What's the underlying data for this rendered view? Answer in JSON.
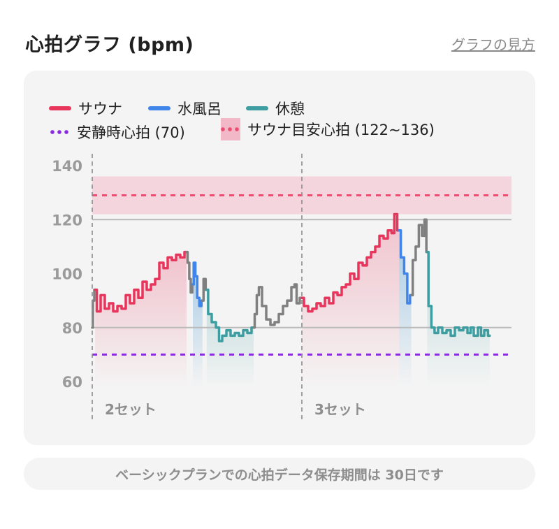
{
  "header": {
    "title": "心拍グラフ (bpm)",
    "help_link": "グラフの見方"
  },
  "notice": "ベーシックプランでの心拍データ保存期間は 30日です",
  "colors": {
    "sauna": "#e8355c",
    "water_bath": "#3f85ea",
    "rest": "#3e9da0",
    "other": "#808080",
    "resting_hr": "#8a2be2",
    "target_line": "#ea4f72",
    "target_band": "#f4c8d4",
    "grid": "#b9b9b9"
  },
  "icons": {
    "legend_line": "line-swatch-icon",
    "legend_dots": "dotted-line-icon",
    "legend_band": "band-swatch-icon"
  },
  "chart_data": {
    "type": "line",
    "title": "心拍グラフ (bpm)",
    "xlabel": "",
    "ylabel": "",
    "ylim": [
      60,
      140
    ],
    "y_ticks": [
      140,
      120,
      100,
      80,
      60
    ],
    "grid_lines": [
      120,
      80
    ],
    "legend": [
      {
        "key": "sauna",
        "label": "サウナ",
        "style": "line"
      },
      {
        "key": "water_bath",
        "label": "水風呂",
        "style": "line"
      },
      {
        "key": "rest",
        "label": "休憩",
        "style": "line"
      },
      {
        "key": "resting_hr",
        "label": "安静時心拍 (70)",
        "style": "dots"
      },
      {
        "key": "target",
        "label": "サウナ目安心拍 (122~136)",
        "style": "band"
      }
    ],
    "resting_hr": 70,
    "target_band": [
      122,
      136
    ],
    "target_line": 129,
    "x_domain": [
      0,
      100
    ],
    "set_markers": [
      {
        "x": 0,
        "label": "2セット"
      },
      {
        "x": 50,
        "label": "3セット"
      }
    ],
    "series": [
      {
        "key": "other",
        "x": [
          0,
          0.3,
          0.7
        ],
        "y": [
          80,
          90,
          94
        ]
      },
      {
        "key": "sauna",
        "x": [
          0.7,
          1.5,
          2.5,
          3.5,
          4.5,
          5.5,
          6.5,
          7.5,
          8.5,
          9.5,
          10.5,
          11.5,
          12.5,
          13.5,
          14.5,
          15.5,
          16.5,
          17.5,
          18.5,
          19.5,
          20.5,
          21.5,
          22.5
        ],
        "y": [
          94,
          86,
          92,
          87,
          89,
          86,
          88,
          87,
          92,
          89,
          94,
          91,
          97,
          94,
          96,
          98,
          104,
          102,
          106,
          105,
          107,
          106,
          108
        ]
      },
      {
        "key": "other",
        "x": [
          22.5,
          23,
          23.3,
          23.7,
          24
        ],
        "y": [
          108,
          104,
          98,
          93,
          96
        ]
      },
      {
        "key": "water_bath",
        "x": [
          24,
          24.4,
          24.8,
          25.3,
          25.8,
          26.3
        ],
        "y": [
          96,
          104,
          99,
          91,
          88,
          90
        ]
      },
      {
        "key": "other",
        "x": [
          26.3,
          26.8,
          27.3
        ],
        "y": [
          90,
          98,
          94
        ]
      },
      {
        "key": "rest",
        "x": [
          27.3,
          28,
          29,
          30,
          30.5,
          31.5,
          32.5,
          33.5,
          34.5,
          35.5,
          36.5,
          37.5,
          38.5
        ],
        "y": [
          94,
          85,
          82,
          80,
          75,
          77,
          79,
          77,
          78,
          77,
          79,
          78,
          80
        ]
      },
      {
        "key": "other",
        "x": [
          38.5,
          39,
          39.5,
          40,
          41,
          42,
          43,
          44,
          45,
          46,
          47,
          48,
          48.5,
          49,
          50
        ],
        "y": [
          80,
          85,
          92,
          95,
          88,
          83,
          81,
          82,
          85,
          88,
          90,
          95,
          96,
          89,
          91
        ]
      },
      {
        "key": "sauna",
        "x": [
          50,
          51,
          52,
          53,
          54,
          55,
          56,
          57,
          58,
          59,
          60,
          61,
          62,
          63,
          64,
          65,
          66,
          67,
          68,
          69,
          70,
          71,
          71.8,
          72.3,
          73.2
        ],
        "y": [
          91,
          88,
          86,
          87,
          89,
          88,
          91,
          89,
          93,
          92,
          95,
          96,
          100,
          98,
          104,
          103,
          106,
          108,
          110,
          114,
          113,
          116,
          115,
          122,
          116
        ]
      },
      {
        "key": "water_bath",
        "x": [
          73.2,
          74,
          74.8,
          75.5,
          76.1
        ],
        "y": [
          116,
          106,
          100,
          89,
          92
        ]
      },
      {
        "key": "other",
        "x": [
          76.1,
          76.8,
          77.5,
          78.3,
          79,
          79.5,
          79.9
        ],
        "y": [
          92,
          105,
          110,
          118,
          114,
          120,
          108
        ]
      },
      {
        "key": "rest",
        "x": [
          79.9,
          80.5,
          81.3,
          82,
          83,
          84,
          85,
          86,
          87,
          88,
          89,
          90,
          90.5,
          91.5,
          92.5,
          93,
          94,
          94.8
        ],
        "y": [
          108,
          88,
          80,
          78,
          80,
          78,
          79,
          77,
          80,
          79,
          80,
          78,
          80,
          77,
          80,
          77,
          79,
          77
        ]
      }
    ],
    "fills": [
      {
        "key": "sauna",
        "from": 0.7,
        "to": 22.5
      },
      {
        "key": "water_bath",
        "from": 24,
        "to": 26.3
      },
      {
        "key": "rest",
        "from": 27.3,
        "to": 38.5
      },
      {
        "key": "sauna",
        "from": 50,
        "to": 73.2
      },
      {
        "key": "water_bath",
        "from": 73.2,
        "to": 76.1
      },
      {
        "key": "rest",
        "from": 79.9,
        "to": 94.8
      }
    ]
  }
}
